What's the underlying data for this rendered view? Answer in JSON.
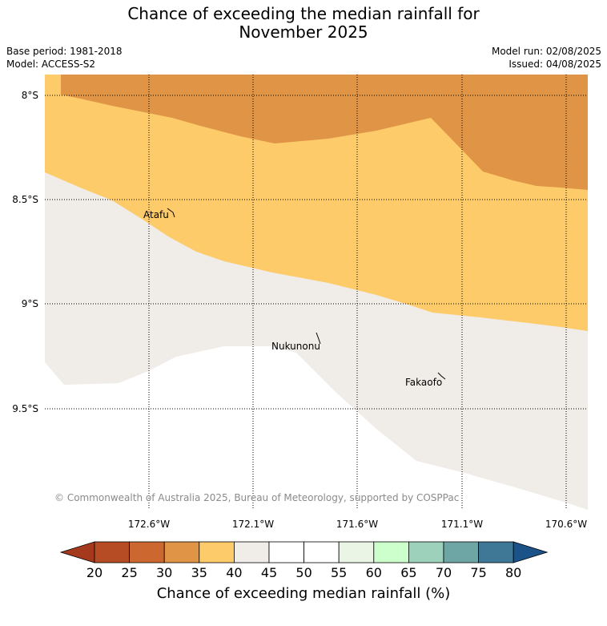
{
  "title_line1": "Chance of exceeding the median rainfall for",
  "title_line2": "November 2025",
  "info": {
    "base_period": "Base period: 1981-2018",
    "model": "Model: ACCESS-S2",
    "model_run": "Model run: 02/08/2025",
    "issued": "Issued: 04/08/2025"
  },
  "map": {
    "lat_labels": [
      "8°S",
      "8.5°S",
      "9°S",
      "9.5°S"
    ],
    "lon_labels": [
      "172.6°W",
      "172.1°W",
      "171.6°W",
      "171.1°W",
      "170.6°W"
    ],
    "places": [
      "Atafu",
      "Nukunonu",
      "Fakaofo"
    ],
    "credit": "© Commonwealth of Australia 2025, Bureau of Meteorology, supported by COSPPac",
    "zone_colors": {
      "25-30": "#cd6730",
      "30-35": "#e09446",
      "35-40": "#fecb6a",
      "40-45": "#f0ece7",
      "45-55": "#ffffff"
    }
  },
  "colorbar": {
    "ticks": [
      "20",
      "25",
      "30",
      "35",
      "40",
      "45",
      "50",
      "55",
      "60",
      "65",
      "70",
      "75",
      "80"
    ],
    "colors": [
      "#a5391e",
      "#b54c24",
      "#cd6730",
      "#e09446",
      "#fecb6a",
      "#f0ece7",
      "#ffffff",
      "#ffffff",
      "#eaf5e6",
      "#ccffcc",
      "#9ed1bb",
      "#6ea6a6",
      "#3f7896",
      "#1b5287"
    ],
    "label": "Chance of exceeding median rainfall (%)"
  }
}
